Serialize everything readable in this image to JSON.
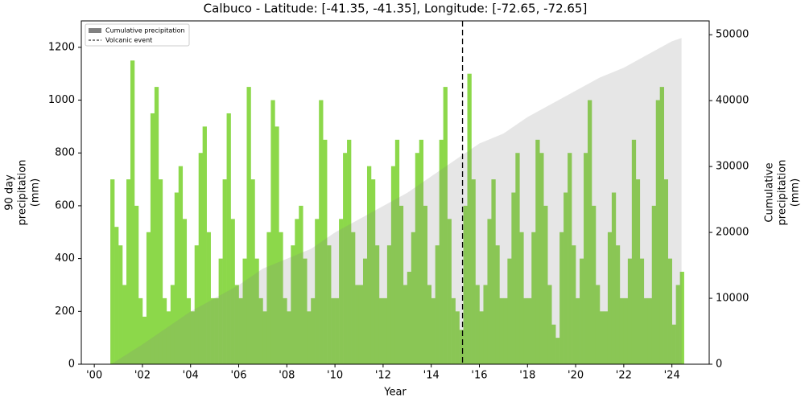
{
  "chart_data": {
    "type": "bar",
    "title": "Calbuco - Latitude: [-41.35, -41.35], Longitude: [-72.65, -72.65]",
    "xlabel": "Year",
    "ylabel": [
      "90 day",
      "precipitation",
      "(mm)"
    ],
    "y2label": [
      "Cumulative",
      "precipitation",
      "(mm)"
    ],
    "xlim": [
      1999.46,
      2025.55
    ],
    "ylim": [
      0,
      1300
    ],
    "y2lim": [
      0,
      52100
    ],
    "xticks": [
      {
        "value": 2000,
        "label": "'00"
      },
      {
        "value": 2002,
        "label": "'02"
      },
      {
        "value": 2004,
        "label": "'04"
      },
      {
        "value": 2006,
        "label": "'06"
      },
      {
        "value": 2008,
        "label": "'08"
      },
      {
        "value": 2010,
        "label": "'10"
      },
      {
        "value": 2012,
        "label": "'12"
      },
      {
        "value": 2014,
        "label": "'14"
      },
      {
        "value": 2016,
        "label": "'16"
      },
      {
        "value": 2018,
        "label": "'18"
      },
      {
        "value": 2020,
        "label": "'20"
      },
      {
        "value": 2022,
        "label": "'22"
      },
      {
        "value": 2024,
        "label": "'24"
      }
    ],
    "yticks": [
      0,
      200,
      400,
      600,
      800,
      1000,
      1200
    ],
    "y2ticks": [
      0,
      10000,
      20000,
      30000,
      40000,
      50000
    ],
    "legend": "upper left",
    "bars": {
      "color": "#8cd84a",
      "bar_width": 0.1667,
      "x": [
        2000.75,
        2000.917,
        2001.083,
        2001.25,
        2001.417,
        2001.583,
        2001.75,
        2001.917,
        2002.083,
        2002.25,
        2002.417,
        2002.583,
        2002.75,
        2002.917,
        2003.083,
        2003.25,
        2003.417,
        2003.583,
        2003.75,
        2003.917,
        2004.083,
        2004.25,
        2004.417,
        2004.583,
        2004.75,
        2004.917,
        2005.083,
        2005.25,
        2005.417,
        2005.583,
        2005.75,
        2005.917,
        2006.083,
        2006.25,
        2006.417,
        2006.583,
        2006.75,
        2006.917,
        2007.083,
        2007.25,
        2007.417,
        2007.583,
        2007.75,
        2007.917,
        2008.083,
        2008.25,
        2008.417,
        2008.583,
        2008.75,
        2008.917,
        2009.083,
        2009.25,
        2009.417,
        2009.583,
        2009.75,
        2009.917,
        2010.083,
        2010.25,
        2010.417,
        2010.583,
        2010.75,
        2010.917,
        2011.083,
        2011.25,
        2011.417,
        2011.583,
        2011.75,
        2011.917,
        2012.083,
        2012.25,
        2012.417,
        2012.583,
        2012.75,
        2012.917,
        2013.083,
        2013.25,
        2013.417,
        2013.583,
        2013.75,
        2013.917,
        2014.083,
        2014.25,
        2014.417,
        2014.583,
        2014.75,
        2014.917,
        2015.083,
        2015.25,
        2015.417,
        2015.583,
        2015.75,
        2015.917,
        2016.083,
        2016.25,
        2016.417,
        2016.583,
        2016.75,
        2016.917,
        2017.083,
        2017.25,
        2017.417,
        2017.583,
        2017.75,
        2017.917,
        2018.083,
        2018.25,
        2018.417,
        2018.583,
        2018.75,
        2018.917,
        2019.083,
        2019.25,
        2019.417,
        2019.583,
        2019.75,
        2019.917,
        2020.083,
        2020.25,
        2020.417,
        2020.583,
        2020.75,
        2020.917,
        2021.083,
        2021.25,
        2021.417,
        2021.583,
        2021.75,
        2021.917,
        2022.083,
        2022.25,
        2022.417,
        2022.583,
        2022.75,
        2022.917,
        2023.083,
        2023.25,
        2023.417,
        2023.583,
        2023.75,
        2023.917,
        2024.083,
        2024.25,
        2024.417
      ],
      "values": [
        700,
        520,
        450,
        300,
        700,
        1150,
        600,
        250,
        180,
        500,
        950,
        1050,
        700,
        250,
        200,
        300,
        650,
        750,
        550,
        250,
        200,
        450,
        800,
        900,
        500,
        250,
        250,
        400,
        700,
        950,
        550,
        300,
        250,
        400,
        1050,
        700,
        400,
        250,
        200,
        500,
        1000,
        900,
        500,
        250,
        200,
        450,
        550,
        600,
        400,
        200,
        250,
        550,
        1000,
        850,
        450,
        250,
        250,
        550,
        800,
        850,
        500,
        300,
        300,
        400,
        750,
        700,
        450,
        250,
        250,
        450,
        750,
        850,
        600,
        300,
        350,
        500,
        800,
        850,
        600,
        300,
        250,
        450,
        850,
        1050,
        550,
        250,
        200,
        130,
        600,
        1100,
        700,
        300,
        200,
        300,
        550,
        700,
        450,
        250,
        250,
        400,
        650,
        800,
        500,
        250,
        250,
        500,
        850,
        800,
        600,
        300,
        150,
        100,
        500,
        650,
        800,
        450,
        250,
        400,
        800,
        1000,
        600,
        300,
        200,
        200,
        500,
        650,
        450,
        250,
        250,
        400,
        850,
        700,
        400,
        250,
        250,
        600,
        1000,
        1050,
        700,
        400,
        150,
        300,
        350
      ]
    },
    "cumulative": {
      "name": "Cumulative precipitation",
      "color": "#808080",
      "axis": "y2",
      "x": [
        2000.7,
        2002,
        2003,
        2004,
        2005,
        2006,
        2007,
        2008,
        2009,
        2010,
        2011,
        2012,
        2013,
        2014,
        2015,
        2016,
        2017,
        2018,
        2019,
        2020,
        2021,
        2022,
        2023,
        2024,
        2024.4
      ],
      "values": [
        0,
        3000,
        5500,
        8000,
        10000,
        12000,
        14500,
        16000,
        17500,
        20000,
        22000,
        24000,
        26000,
        28500,
        31000,
        33500,
        35000,
        37500,
        39500,
        41500,
        43500,
        45000,
        47000,
        49000,
        49500
      ]
    },
    "event": {
      "name": "Volcanic event",
      "x": 2015.3,
      "color": "#000000"
    }
  }
}
